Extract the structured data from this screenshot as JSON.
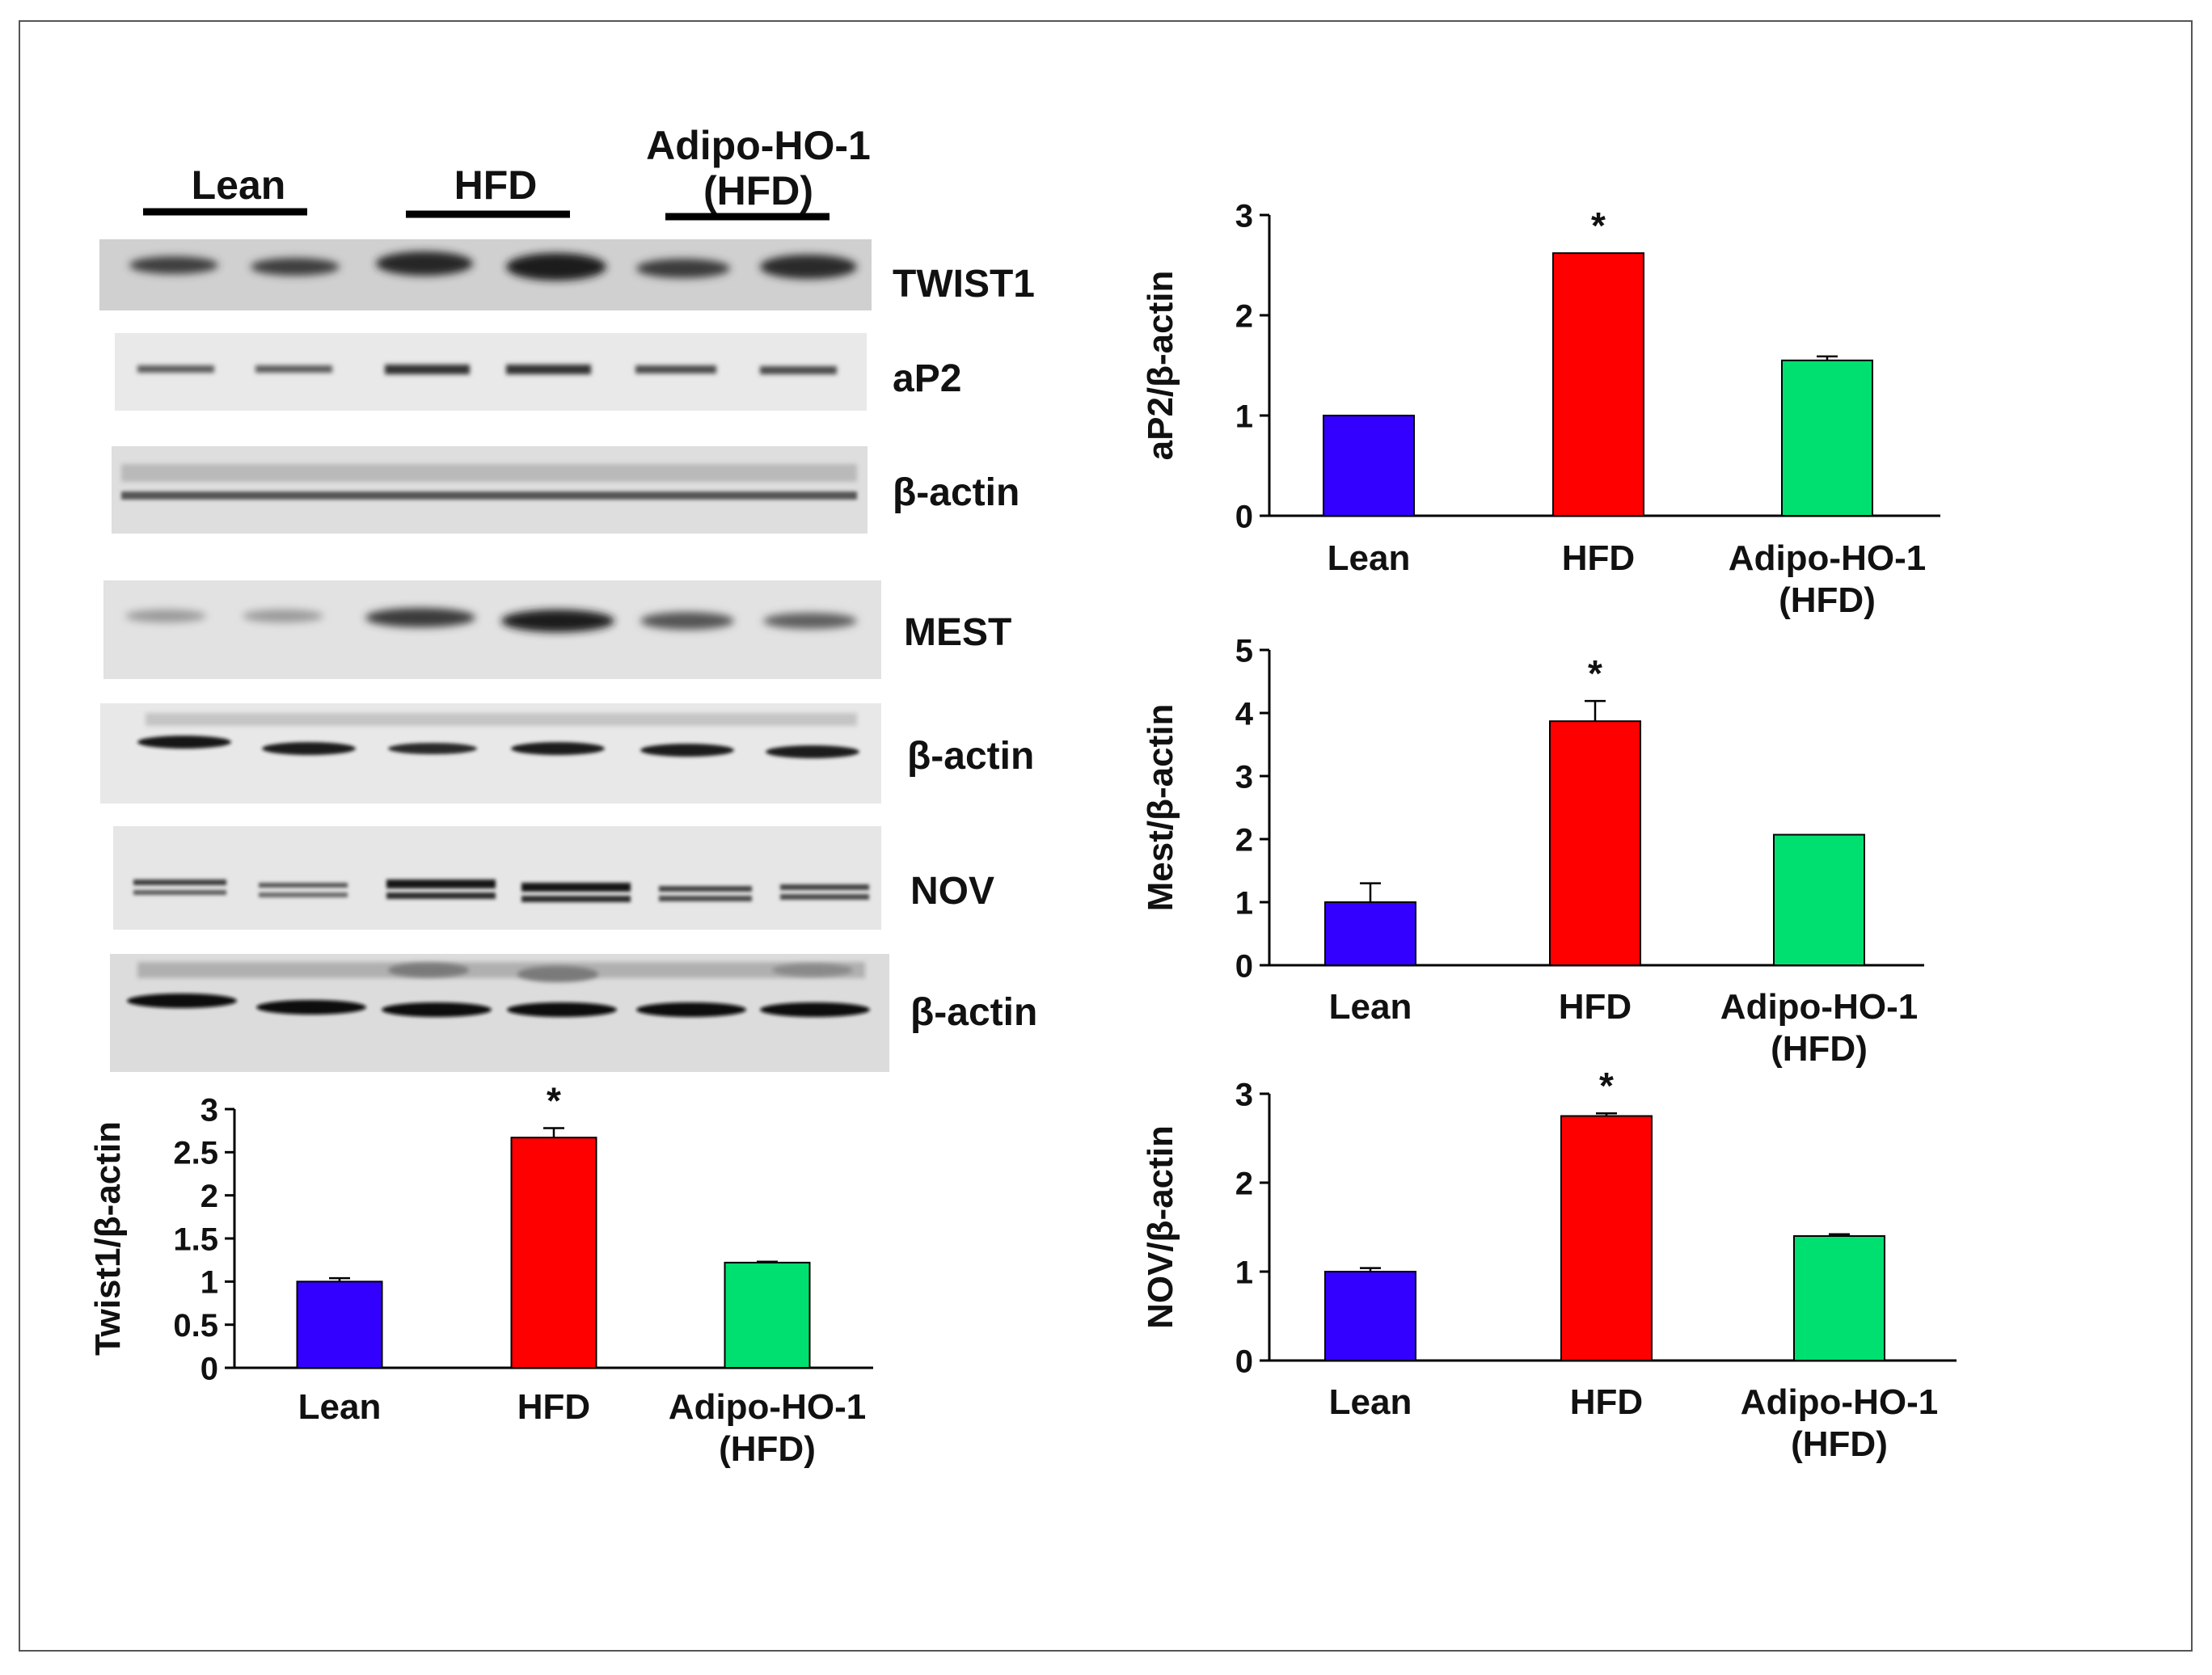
{
  "blot": {
    "groups": [
      "Lean",
      "HFD",
      "Adipo-HO-1",
      "(HFD)"
    ],
    "bands": [
      {
        "label": "TWIST1"
      },
      {
        "label": "aP2"
      },
      {
        "label": "β-actin"
      },
      {
        "label": "MEST"
      },
      {
        "label": "β-actin"
      },
      {
        "label": "NOV"
      },
      {
        "label": "β-actin"
      }
    ]
  },
  "colors": {
    "Lean": "#3300ff",
    "HFD": "#ff0000",
    "Adipo-HO-1 (HFD)": "#00e070"
  },
  "chart_data": [
    {
      "type": "bar",
      "categories": [
        "Lean",
        "HFD",
        "Adipo-HO-1 (HFD)"
      ],
      "category_lines": [
        [
          "Lean"
        ],
        [
          "HFD"
        ],
        [
          "Adipo-HO-1",
          "(HFD)"
        ]
      ],
      "values": [
        1.0,
        2.67,
        1.22
      ],
      "errors": [
        0.04,
        0.11,
        0.01
      ],
      "significance": [
        "",
        "*",
        ""
      ],
      "ylabel": "Twist1/β-actin",
      "ylim": [
        0,
        3
      ],
      "yticks": [
        "0",
        "0.5",
        "1",
        "1.5",
        "2",
        "2.5",
        "3"
      ],
      "grid": false,
      "legend": "none"
    },
    {
      "type": "bar",
      "categories": [
        "Lean",
        "HFD",
        "Adipo-HO-1 (HFD)"
      ],
      "category_lines": [
        [
          "Lean"
        ],
        [
          "HFD"
        ],
        [
          "Adipo-HO-1",
          "(HFD)"
        ]
      ],
      "values": [
        1.0,
        2.62,
        1.55
      ],
      "errors": [
        0.0,
        0.0,
        0.04
      ],
      "significance": [
        "",
        "*",
        ""
      ],
      "ylabel": "aP2/β-actin",
      "ylim": [
        0,
        3
      ],
      "yticks": [
        "0",
        "1",
        "2",
        "3"
      ],
      "grid": false,
      "legend": "none"
    },
    {
      "type": "bar",
      "categories": [
        "Lean",
        "HFD",
        "Adipo-HO-1 (HFD)"
      ],
      "category_lines": [
        [
          "Lean"
        ],
        [
          "HFD"
        ],
        [
          "Adipo-HO-1",
          "(HFD)"
        ]
      ],
      "values": [
        1.0,
        3.87,
        2.07
      ],
      "errors": [
        0.3,
        0.32,
        0.0
      ],
      "significance": [
        "",
        "*",
        ""
      ],
      "ylabel": "Mest/β-actin",
      "ylim": [
        0,
        5
      ],
      "yticks": [
        "0",
        "1",
        "2",
        "3",
        "4",
        "5"
      ],
      "grid": false,
      "legend": "none"
    },
    {
      "type": "bar",
      "categories": [
        "Lean",
        "HFD",
        "Adipo-HO-1 (HFD)"
      ],
      "category_lines": [
        [
          "Lean"
        ],
        [
          "HFD"
        ],
        [
          "Adipo-HO-1",
          "(HFD)"
        ]
      ],
      "values": [
        1.0,
        2.75,
        1.4
      ],
      "errors": [
        0.04,
        0.03,
        0.02
      ],
      "significance": [
        "",
        "*",
        ""
      ],
      "ylabel": "NOV/β-actin",
      "ylim": [
        0,
        3
      ],
      "yticks": [
        "0",
        "1",
        "2",
        "3"
      ],
      "grid": false,
      "legend": "none"
    }
  ]
}
